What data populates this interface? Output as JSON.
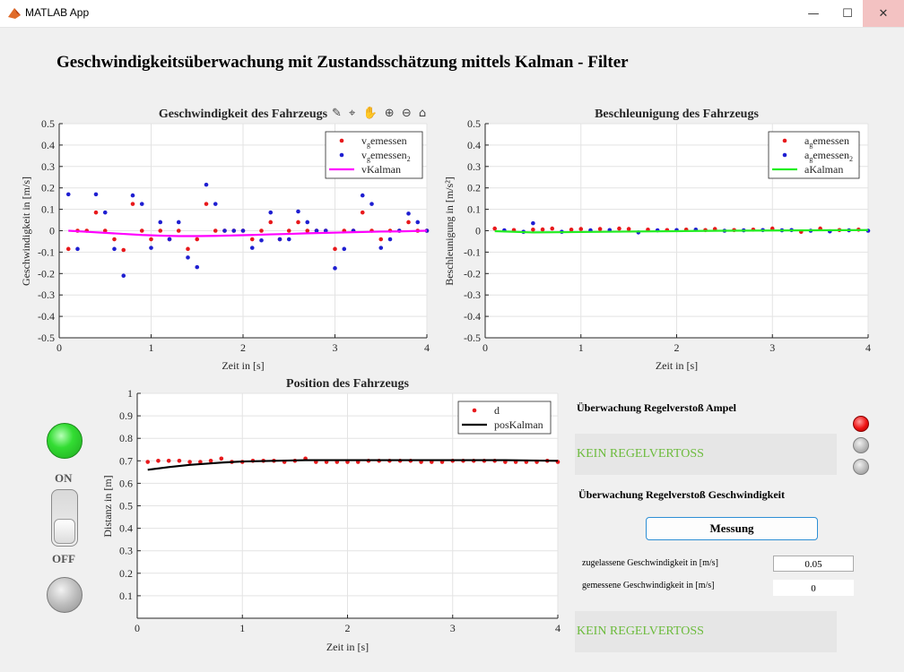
{
  "window": {
    "title": "MATLAB App",
    "minimize_glyph": "—",
    "maximize_glyph": "☐",
    "close_glyph": "✕"
  },
  "app": {
    "title": "Geschwindigkeitsüberwachung mit Zustandsschätzung mittels Kalman - Filter"
  },
  "axes_toolbar": {
    "icons": [
      "brush-icon",
      "datatip-icon",
      "pan-icon",
      "zoom-in-icon",
      "zoom-out-icon",
      "home-icon"
    ],
    "glyphs": "✎ ⌖ ✋ ⊕ ⊖ ⌂"
  },
  "controls": {
    "on_label": "ON",
    "off_label": "OFF",
    "ampel_section": "Überwachung Regelverstoß Ampel",
    "ampel_status": "KEIN REGELVERTOSS",
    "speed_section": "Überwachung  Regelverstoß Geschwindigkeit",
    "messung_button": "Messung",
    "allowed_speed_label": "zugelassene Geschwindigkeit in [m/s]",
    "allowed_speed_value": "0.05",
    "measured_speed_label": "gemessene Geschwindigkeit in [m/s]",
    "measured_speed_value": "0",
    "speed_status": "KEIN REGELVERTOSS",
    "colors": {
      "status_text": "#6cbb3c",
      "lamp_on": "#33dd33",
      "signal_red": "#ee1111",
      "button_border": "#2d8fd5"
    }
  },
  "chart_data": [
    {
      "type": "scatter",
      "title": "Geschwindigkeit des Fahrzeugs",
      "xlabel": "Zeit in [s]",
      "ylabel": "Geschwindigkeit in [m/s]",
      "xlim": [
        0,
        4
      ],
      "ylim": [
        -0.5,
        0.5
      ],
      "xticks": [
        0,
        1,
        2,
        3,
        4
      ],
      "yticks": [
        -0.5,
        -0.4,
        -0.3,
        -0.2,
        -0.1,
        0,
        0.1,
        0.2,
        0.3,
        0.4,
        0.5
      ],
      "grid": true,
      "legend_position": "top-right",
      "legend": [
        {
          "label": "v",
          "sub": "g",
          "rest": "emessen",
          "sub2": "",
          "color": "#e8191c",
          "kind": "dot"
        },
        {
          "label": "v",
          "sub": "g",
          "rest": "emessen",
          "sub2": "2",
          "color": "#1f1fd1",
          "kind": "dot"
        },
        {
          "label": "vKalman",
          "sub": "",
          "rest": "",
          "sub2": "",
          "color": "#ff00ff",
          "kind": "line"
        }
      ],
      "series": [
        {
          "name": "vgemessen",
          "kind": "dot",
          "color": "#e8191c",
          "x": [
            0.1,
            0.2,
            0.3,
            0.4,
            0.5,
            0.6,
            0.7,
            0.8,
            0.9,
            1.0,
            1.1,
            1.2,
            1.3,
            1.4,
            1.5,
            1.6,
            1.7,
            1.8,
            1.9,
            2.0,
            2.1,
            2.2,
            2.3,
            2.4,
            2.5,
            2.6,
            2.7,
            2.8,
            2.9,
            3.0,
            3.1,
            3.2,
            3.3,
            3.4,
            3.5,
            3.6,
            3.7,
            3.8,
            3.9,
            4.0
          ],
          "y": [
            -0.085,
            0,
            0,
            0.085,
            0,
            -0.04,
            -0.09,
            0.125,
            0,
            -0.04,
            0,
            -0.04,
            0,
            -0.085,
            -0.04,
            0.125,
            0,
            0,
            0,
            0,
            -0.04,
            0,
            0.04,
            -0.04,
            0,
            0.04,
            0,
            0,
            0,
            -0.085,
            0,
            0,
            0.085,
            0,
            -0.04,
            0,
            0,
            0.04,
            0,
            0
          ]
        },
        {
          "name": "vgemessen2",
          "kind": "dot",
          "color": "#1f1fd1",
          "x": [
            0.1,
            0.2,
            0.4,
            0.5,
            0.6,
            0.7,
            0.8,
            0.9,
            1.0,
            1.1,
            1.2,
            1.3,
            1.4,
            1.5,
            1.6,
            1.7,
            1.8,
            1.9,
            2.0,
            2.1,
            2.2,
            2.3,
            2.4,
            2.5,
            2.6,
            2.7,
            2.8,
            2.9,
            3.0,
            3.1,
            3.2,
            3.3,
            3.4,
            3.5,
            3.6,
            3.7,
            3.8,
            3.9,
            4.0
          ],
          "y": [
            0.17,
            -0.085,
            0.17,
            0.085,
            -0.085,
            -0.21,
            0.165,
            0.125,
            -0.08,
            0.04,
            -0.04,
            0.04,
            -0.125,
            -0.17,
            0.215,
            0.125,
            0,
            0,
            0,
            -0.08,
            -0.045,
            0.085,
            -0.04,
            -0.04,
            0.09,
            0.04,
            0,
            0,
            -0.175,
            -0.085,
            0,
            0.165,
            0.125,
            -0.08,
            -0.04,
            0,
            0.08,
            0.04,
            0
          ]
        },
        {
          "name": "vKalman",
          "kind": "line",
          "color": "#ff00ff",
          "x": [
            0.1,
            0.3,
            0.5,
            0.7,
            0.9,
            1.1,
            1.3,
            1.5,
            1.7,
            1.9,
            2.1,
            2.3,
            2.5,
            2.7,
            2.9,
            3.1,
            3.3,
            3.5,
            3.7,
            3.9,
            4.0
          ],
          "y": [
            0.0,
            -0.005,
            -0.01,
            -0.015,
            -0.02,
            -0.023,
            -0.025,
            -0.025,
            -0.024,
            -0.022,
            -0.02,
            -0.017,
            -0.015,
            -0.012,
            -0.01,
            -0.008,
            -0.006,
            -0.004,
            -0.003,
            -0.001,
            0.0
          ]
        }
      ]
    },
    {
      "type": "scatter",
      "title": "Beschleunigung des Fahrzeugs",
      "xlabel": "Zeit in [s]",
      "ylabel": "Beschleunigung  in  [m/s²]",
      "xlim": [
        0,
        4
      ],
      "ylim": [
        -0.5,
        0.5
      ],
      "xticks": [
        0,
        1,
        2,
        3,
        4
      ],
      "yticks": [
        -0.5,
        -0.4,
        -0.3,
        -0.2,
        -0.1,
        0,
        0.1,
        0.2,
        0.3,
        0.4,
        0.5
      ],
      "grid": true,
      "legend_position": "top-right",
      "legend": [
        {
          "label": "a",
          "sub": "g",
          "rest": "emessen",
          "sub2": "",
          "color": "#e8191c",
          "kind": "dot"
        },
        {
          "label": "a",
          "sub": "g",
          "rest": "emessen",
          "sub2": "2",
          "color": "#1f1fd1",
          "kind": "dot"
        },
        {
          "label": "aKalman",
          "sub": "",
          "rest": "",
          "sub2": "",
          "color": "#22ee22",
          "kind": "line"
        }
      ],
      "series": [
        {
          "name": "agemessen",
          "kind": "dot",
          "color": "#e8191c",
          "x": [
            0.1,
            0.3,
            0.5,
            0.6,
            0.7,
            0.9,
            1.0,
            1.2,
            1.4,
            1.5,
            1.7,
            1.9,
            2.1,
            2.3,
            2.4,
            2.6,
            2.8,
            3.0,
            3.3,
            3.5,
            3.7,
            3.9
          ],
          "y": [
            0.01,
            0.003,
            0.005,
            0.006,
            0.01,
            0.005,
            0.008,
            0.008,
            0.01,
            0.008,
            0.005,
            0.003,
            0.005,
            0.003,
            0.008,
            0.003,
            0.005,
            0.01,
            -0.005,
            0.01,
            0.003,
            0.005
          ]
        },
        {
          "name": "agemessen2",
          "kind": "dot",
          "color": "#1f1fd1",
          "x": [
            0.2,
            0.4,
            0.5,
            0.8,
            1.1,
            1.3,
            1.6,
            1.8,
            2.0,
            2.2,
            2.5,
            2.7,
            2.9,
            3.1,
            3.2,
            3.4,
            3.6,
            3.8,
            4.0
          ],
          "y": [
            0.002,
            -0.005,
            0.035,
            -0.005,
            0.002,
            0.003,
            -0.008,
            0.002,
            0.003,
            0.005,
            0,
            0.002,
            0.003,
            0.002,
            0.003,
            0,
            -0.003,
            0.002,
            0
          ]
        },
        {
          "name": "aKalman",
          "kind": "line",
          "color": "#22ee22",
          "x": [
            0.1,
            0.5,
            1.0,
            1.5,
            2.0,
            2.5,
            3.0,
            3.5,
            4.0
          ],
          "y": [
            -0.002,
            -0.008,
            -0.006,
            -0.004,
            -0.002,
            0.0,
            0.001,
            0.002,
            0.003
          ]
        }
      ]
    },
    {
      "type": "scatter",
      "title": "Position des Fahrzeugs",
      "xlabel": "Zeit in [s]",
      "ylabel": "Distanz in [m]",
      "xlim": [
        0,
        4
      ],
      "ylim": [
        0,
        1
      ],
      "xticks": [
        0,
        1,
        2,
        3,
        4
      ],
      "yticks": [
        0.1,
        0.2,
        0.3,
        0.4,
        0.5,
        0.6,
        0.7,
        0.8,
        0.9,
        1
      ],
      "grid": true,
      "legend_position": "top-right",
      "legend": [
        {
          "label": "d",
          "sub": "",
          "rest": "",
          "sub2": "",
          "color": "#e8191c",
          "kind": "dot"
        },
        {
          "label": "posKalman",
          "sub": "",
          "rest": "",
          "sub2": "",
          "color": "#000000",
          "kind": "line"
        }
      ],
      "series": [
        {
          "name": "d",
          "kind": "dot",
          "color": "#e8191c",
          "x": [
            0.1,
            0.2,
            0.3,
            0.4,
            0.5,
            0.6,
            0.7,
            0.8,
            0.9,
            1.0,
            1.1,
            1.2,
            1.3,
            1.4,
            1.5,
            1.6,
            1.7,
            1.8,
            1.9,
            2.0,
            2.1,
            2.2,
            2.3,
            2.4,
            2.5,
            2.6,
            2.7,
            2.8,
            2.9,
            3.0,
            3.1,
            3.2,
            3.3,
            3.4,
            3.5,
            3.6,
            3.7,
            3.8,
            3.9,
            4.0
          ],
          "y": [
            0.695,
            0.7,
            0.7,
            0.7,
            0.695,
            0.695,
            0.7,
            0.71,
            0.695,
            0.695,
            0.7,
            0.7,
            0.7,
            0.695,
            0.7,
            0.71,
            0.695,
            0.695,
            0.695,
            0.695,
            0.695,
            0.7,
            0.7,
            0.7,
            0.7,
            0.7,
            0.695,
            0.695,
            0.695,
            0.7,
            0.7,
            0.7,
            0.7,
            0.7,
            0.695,
            0.695,
            0.695,
            0.695,
            0.7,
            0.695
          ]
        },
        {
          "name": "posKalman",
          "kind": "line",
          "color": "#000000",
          "x": [
            0.1,
            0.3,
            0.5,
            0.8,
            1.0,
            1.3,
            1.6,
            2.0,
            2.5,
            3.0,
            3.5,
            4.0
          ],
          "y": [
            0.66,
            0.672,
            0.682,
            0.692,
            0.697,
            0.7,
            0.703,
            0.703,
            0.703,
            0.703,
            0.703,
            0.7
          ]
        }
      ]
    }
  ]
}
